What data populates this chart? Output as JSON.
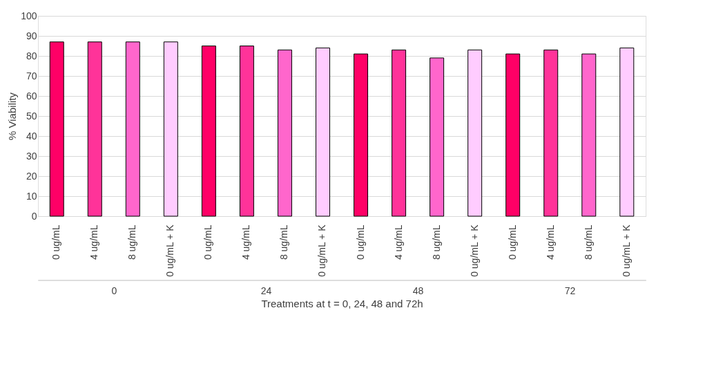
{
  "chart_data": {
    "type": "bar",
    "ylabel": "% Viability",
    "xlabel": "Treatments at t = 0, 24, 48 and 72h",
    "categories": [
      "0 ug/mL",
      "4 ug/mL",
      "8 ug/mL",
      "0 ug/mL + K",
      "0 ug/mL",
      "4 ug/mL",
      "8 ug/mL",
      "0 ug/mL + K",
      "0 ug/mL",
      "4 ug/mL",
      "8 ug/mL",
      "0 ug/mL + K",
      "0 ug/mL",
      "4 ug/mL",
      "8 ug/mL",
      "0 ug/mL + K"
    ],
    "values": [
      87,
      87,
      87,
      87,
      85,
      85,
      83,
      84,
      81,
      83,
      79,
      83,
      81,
      83,
      81,
      84
    ],
    "colors": [
      "#ff0066",
      "#ff3399",
      "#ff66cc",
      "#ffccff",
      "#ff0066",
      "#ff3399",
      "#ff66cc",
      "#ffccff",
      "#ff0066",
      "#ff3399",
      "#ff66cc",
      "#ffccff",
      "#ff0066",
      "#ff3399",
      "#ff66cc",
      "#ffccff"
    ],
    "annotations": [
      "0",
      "24",
      "48",
      "72"
    ],
    "ylim": [
      0,
      100
    ],
    "yticks": [
      0,
      10,
      20,
      30,
      40,
      50,
      60,
      70,
      80,
      90,
      100
    ],
    "grid": "y",
    "legend": false
  }
}
